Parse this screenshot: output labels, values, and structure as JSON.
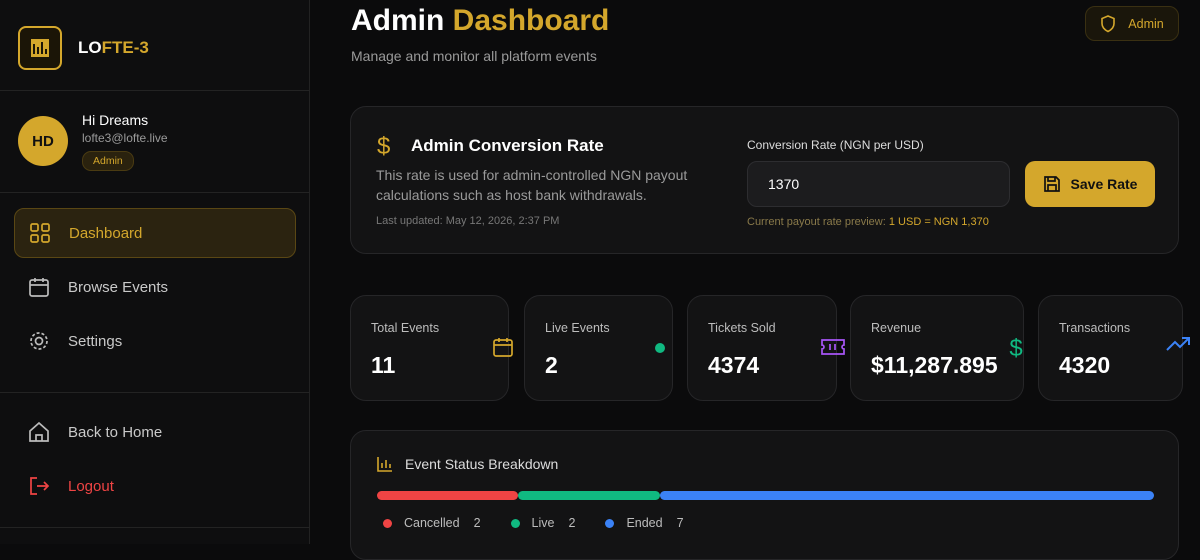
{
  "sidebar": {
    "brand_a": "LO",
    "brand_b": "FTE-3",
    "avatar": "HD",
    "greeting": "Hi Dreams",
    "email": "lofte3@lofte.live",
    "role": "Admin",
    "nav": [
      "Dashboard",
      "Browse Events",
      "Settings"
    ],
    "footer_nav": [
      "Back to Home",
      "Logout"
    ]
  },
  "header": {
    "title_a": "Admin",
    "title_b": "Dashboard",
    "subtitle": "Manage and monitor all platform events",
    "badge": "Admin"
  },
  "conversion": {
    "title": "Admin Conversion Rate",
    "description": "This rate is used for admin-controlled NGN payout calculations such as host bank withdrawals.",
    "updated": "Last updated: May 12, 2026, 2:37 PM",
    "field_label": "Conversion Rate (NGN per USD)",
    "field_value": "1370",
    "button": "Save Rate",
    "preview_label": "Current payout rate preview:",
    "preview_value": "1 USD = NGN 1,370"
  },
  "stats": [
    {
      "label": "Total Events",
      "value": "11"
    },
    {
      "label": "Live Events",
      "value": "2"
    },
    {
      "label": "Tickets Sold",
      "value": "4374"
    },
    {
      "label": "Revenue",
      "value": "$11,287.895"
    },
    {
      "label": "Transactions",
      "value": "4320"
    }
  ],
  "breakdown": {
    "title": "Event Status Breakdown",
    "items": [
      {
        "name": "Cancelled",
        "color": "#ef4444",
        "value": 2
      },
      {
        "name": "Live",
        "color": "#10b981",
        "value": 2
      },
      {
        "name": "Ended",
        "color": "#3b82f6",
        "value": 7
      }
    ]
  }
}
